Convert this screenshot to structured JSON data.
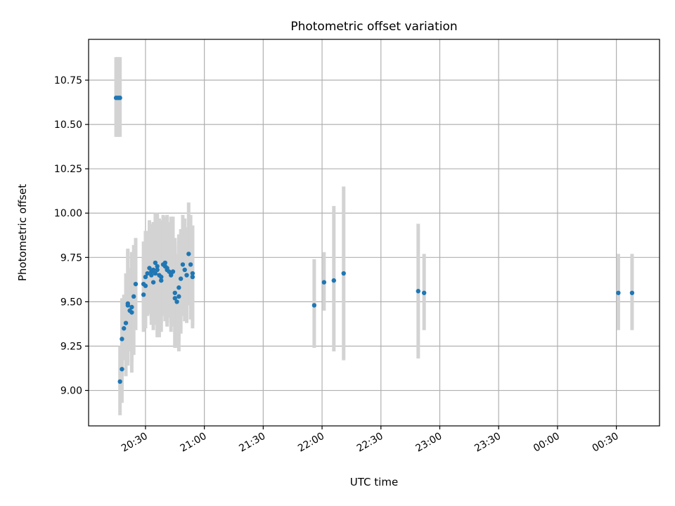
{
  "chart_data": {
    "type": "scatter",
    "title": "Photometric offset variation",
    "xlabel": "UTC time",
    "ylabel": "Photometric offset",
    "x_ticks": [
      "20:30",
      "21:00",
      "21:30",
      "22:00",
      "22:30",
      "23:00",
      "23:30",
      "00:00",
      "00:30"
    ],
    "y_ticks": [
      "9.00",
      "9.25",
      "9.50",
      "9.75",
      "10.00",
      "10.25",
      "10.50",
      "10.75"
    ],
    "xlim": [
      "20:01",
      "00:52"
    ],
    "ylim": [
      8.8,
      10.98
    ],
    "grid": true,
    "point_color": "#1f77b4",
    "error_bar_color": "#d3d3d3",
    "series": [
      {
        "x": [
          "20:15",
          "20:16",
          "20:17",
          "20:17",
          "20:18",
          "20:18",
          "20:19",
          "20:20",
          "20:21",
          "20:21",
          "20:22",
          "20:23",
          "20:23",
          "20:24",
          "20:25",
          "20:29",
          "20:29",
          "20:30",
          "20:30",
          "20:31",
          "20:32",
          "20:33",
          "20:33",
          "20:34",
          "20:34",
          "20:35",
          "20:35",
          "20:36",
          "20:36",
          "20:37",
          "20:38",
          "20:38",
          "20:39",
          "20:40",
          "20:40",
          "20:41",
          "20:41",
          "20:42",
          "20:43",
          "20:43",
          "20:44",
          "20:45",
          "20:45",
          "20:46",
          "20:47",
          "20:47",
          "20:48",
          "20:49",
          "20:50",
          "20:51",
          "20:52",
          "20:53",
          "20:54",
          "20:54",
          "21:56",
          "22:01",
          "22:06",
          "22:11",
          "22:49",
          "22:52",
          "00:31",
          "00:38"
        ],
        "y": [
          10.65,
          10.65,
          10.65,
          9.05,
          9.12,
          9.29,
          9.35,
          9.38,
          9.49,
          9.48,
          9.45,
          9.47,
          9.44,
          9.53,
          9.6,
          9.54,
          9.6,
          9.64,
          9.59,
          9.66,
          9.69,
          9.65,
          9.67,
          9.68,
          9.61,
          9.66,
          9.72,
          9.7,
          9.68,
          9.65,
          9.64,
          9.62,
          9.71,
          9.7,
          9.72,
          9.69,
          9.68,
          9.67,
          9.66,
          9.65,
          9.67,
          9.55,
          9.52,
          9.5,
          9.53,
          9.58,
          9.63,
          9.71,
          9.68,
          9.65,
          9.77,
          9.71,
          9.66,
          9.64,
          9.48,
          9.61,
          9.62,
          9.66,
          9.56,
          9.55,
          9.55,
          9.55
        ],
        "err_low": [
          10.43,
          10.43,
          10.43,
          8.86,
          8.93,
          9.06,
          9.17,
          9.08,
          9.24,
          9.14,
          9.22,
          9.16,
          9.1,
          9.2,
          9.34,
          9.33,
          9.37,
          9.38,
          9.35,
          9.42,
          9.43,
          9.37,
          9.4,
          9.41,
          9.34,
          9.37,
          9.45,
          9.42,
          9.3,
          9.3,
          9.33,
          9.38,
          9.42,
          9.39,
          9.46,
          9.36,
          9.38,
          9.41,
          9.33,
          9.38,
          9.36,
          9.25,
          9.24,
          9.24,
          9.22,
          9.28,
          9.32,
          9.42,
          9.39,
          9.38,
          9.48,
          9.4,
          9.37,
          9.35,
          9.24,
          9.45,
          9.22,
          9.17,
          9.18,
          9.34,
          9.34,
          9.34
        ],
        "err_high": [
          10.88,
          10.88,
          10.88,
          9.25,
          9.32,
          9.52,
          9.54,
          9.66,
          9.8,
          9.79,
          9.69,
          9.78,
          9.78,
          9.82,
          9.86,
          9.75,
          9.84,
          9.9,
          9.84,
          9.9,
          9.96,
          9.93,
          9.94,
          9.95,
          9.88,
          9.95,
          10.0,
          9.99,
          10.0,
          9.97,
          9.96,
          9.86,
          9.99,
          9.98,
          9.98,
          9.99,
          9.95,
          9.95,
          9.98,
          9.92,
          9.98,
          9.86,
          9.82,
          9.77,
          9.84,
          9.88,
          9.91,
          9.99,
          9.97,
          9.92,
          10.06,
          9.99,
          9.93,
          9.93,
          9.74,
          9.78,
          10.04,
          10.15,
          9.94,
          9.77,
          9.77,
          9.77
        ]
      }
    ]
  }
}
